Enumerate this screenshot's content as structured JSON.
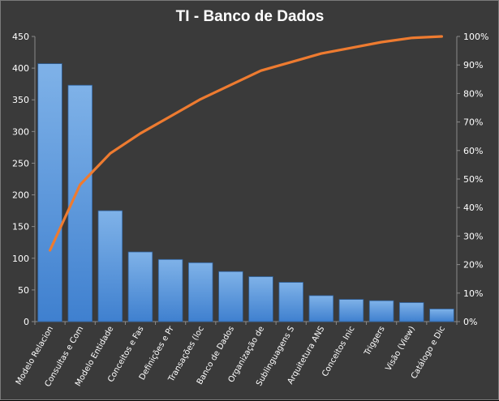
{
  "chart_data": {
    "type": "bar",
    "title": "TI - Banco de Dados",
    "categories": [
      "Modelo Relacion",
      "Consultas e Com",
      "Modelo Entidade",
      "Conceitos e Fas",
      "Definições e Pr",
      "Transações (loc",
      "Banco de Dados",
      "Organização de",
      "Sublinguagens S",
      "Arquitetura ANS",
      "Conceitos Inic",
      "Triggers",
      "Visão (View)",
      "Catálogo e Dic"
    ],
    "series": [
      {
        "type": "bar",
        "values": [
          407,
          373,
          175,
          110,
          98,
          93,
          79,
          71,
          62,
          41,
          35,
          33,
          30,
          20
        ]
      },
      {
        "type": "line",
        "axis": "right",
        "values": [
          25,
          48,
          59,
          66,
          72,
          78,
          83,
          88,
          91,
          94,
          96,
          98,
          99.5,
          100
        ]
      }
    ],
    "ylim": [
      0,
      450
    ],
    "yticks": [
      "0",
      "50",
      "100",
      "150",
      "200",
      "250",
      "300",
      "350",
      "400",
      "450"
    ],
    "y2lim": [
      0,
      100
    ],
    "y2ticks": [
      "0%",
      "10%",
      "20%",
      "30%",
      "40%",
      "50%",
      "60%",
      "70%",
      "80%",
      "90%",
      "100%"
    ],
    "grid": false,
    "legend": "none",
    "colors": {
      "bar": "#4f8fd6",
      "bar_light": "#7fb2e8",
      "line": "#ee7b30",
      "background": "#3a3a3a",
      "text": "#ffffff"
    }
  }
}
